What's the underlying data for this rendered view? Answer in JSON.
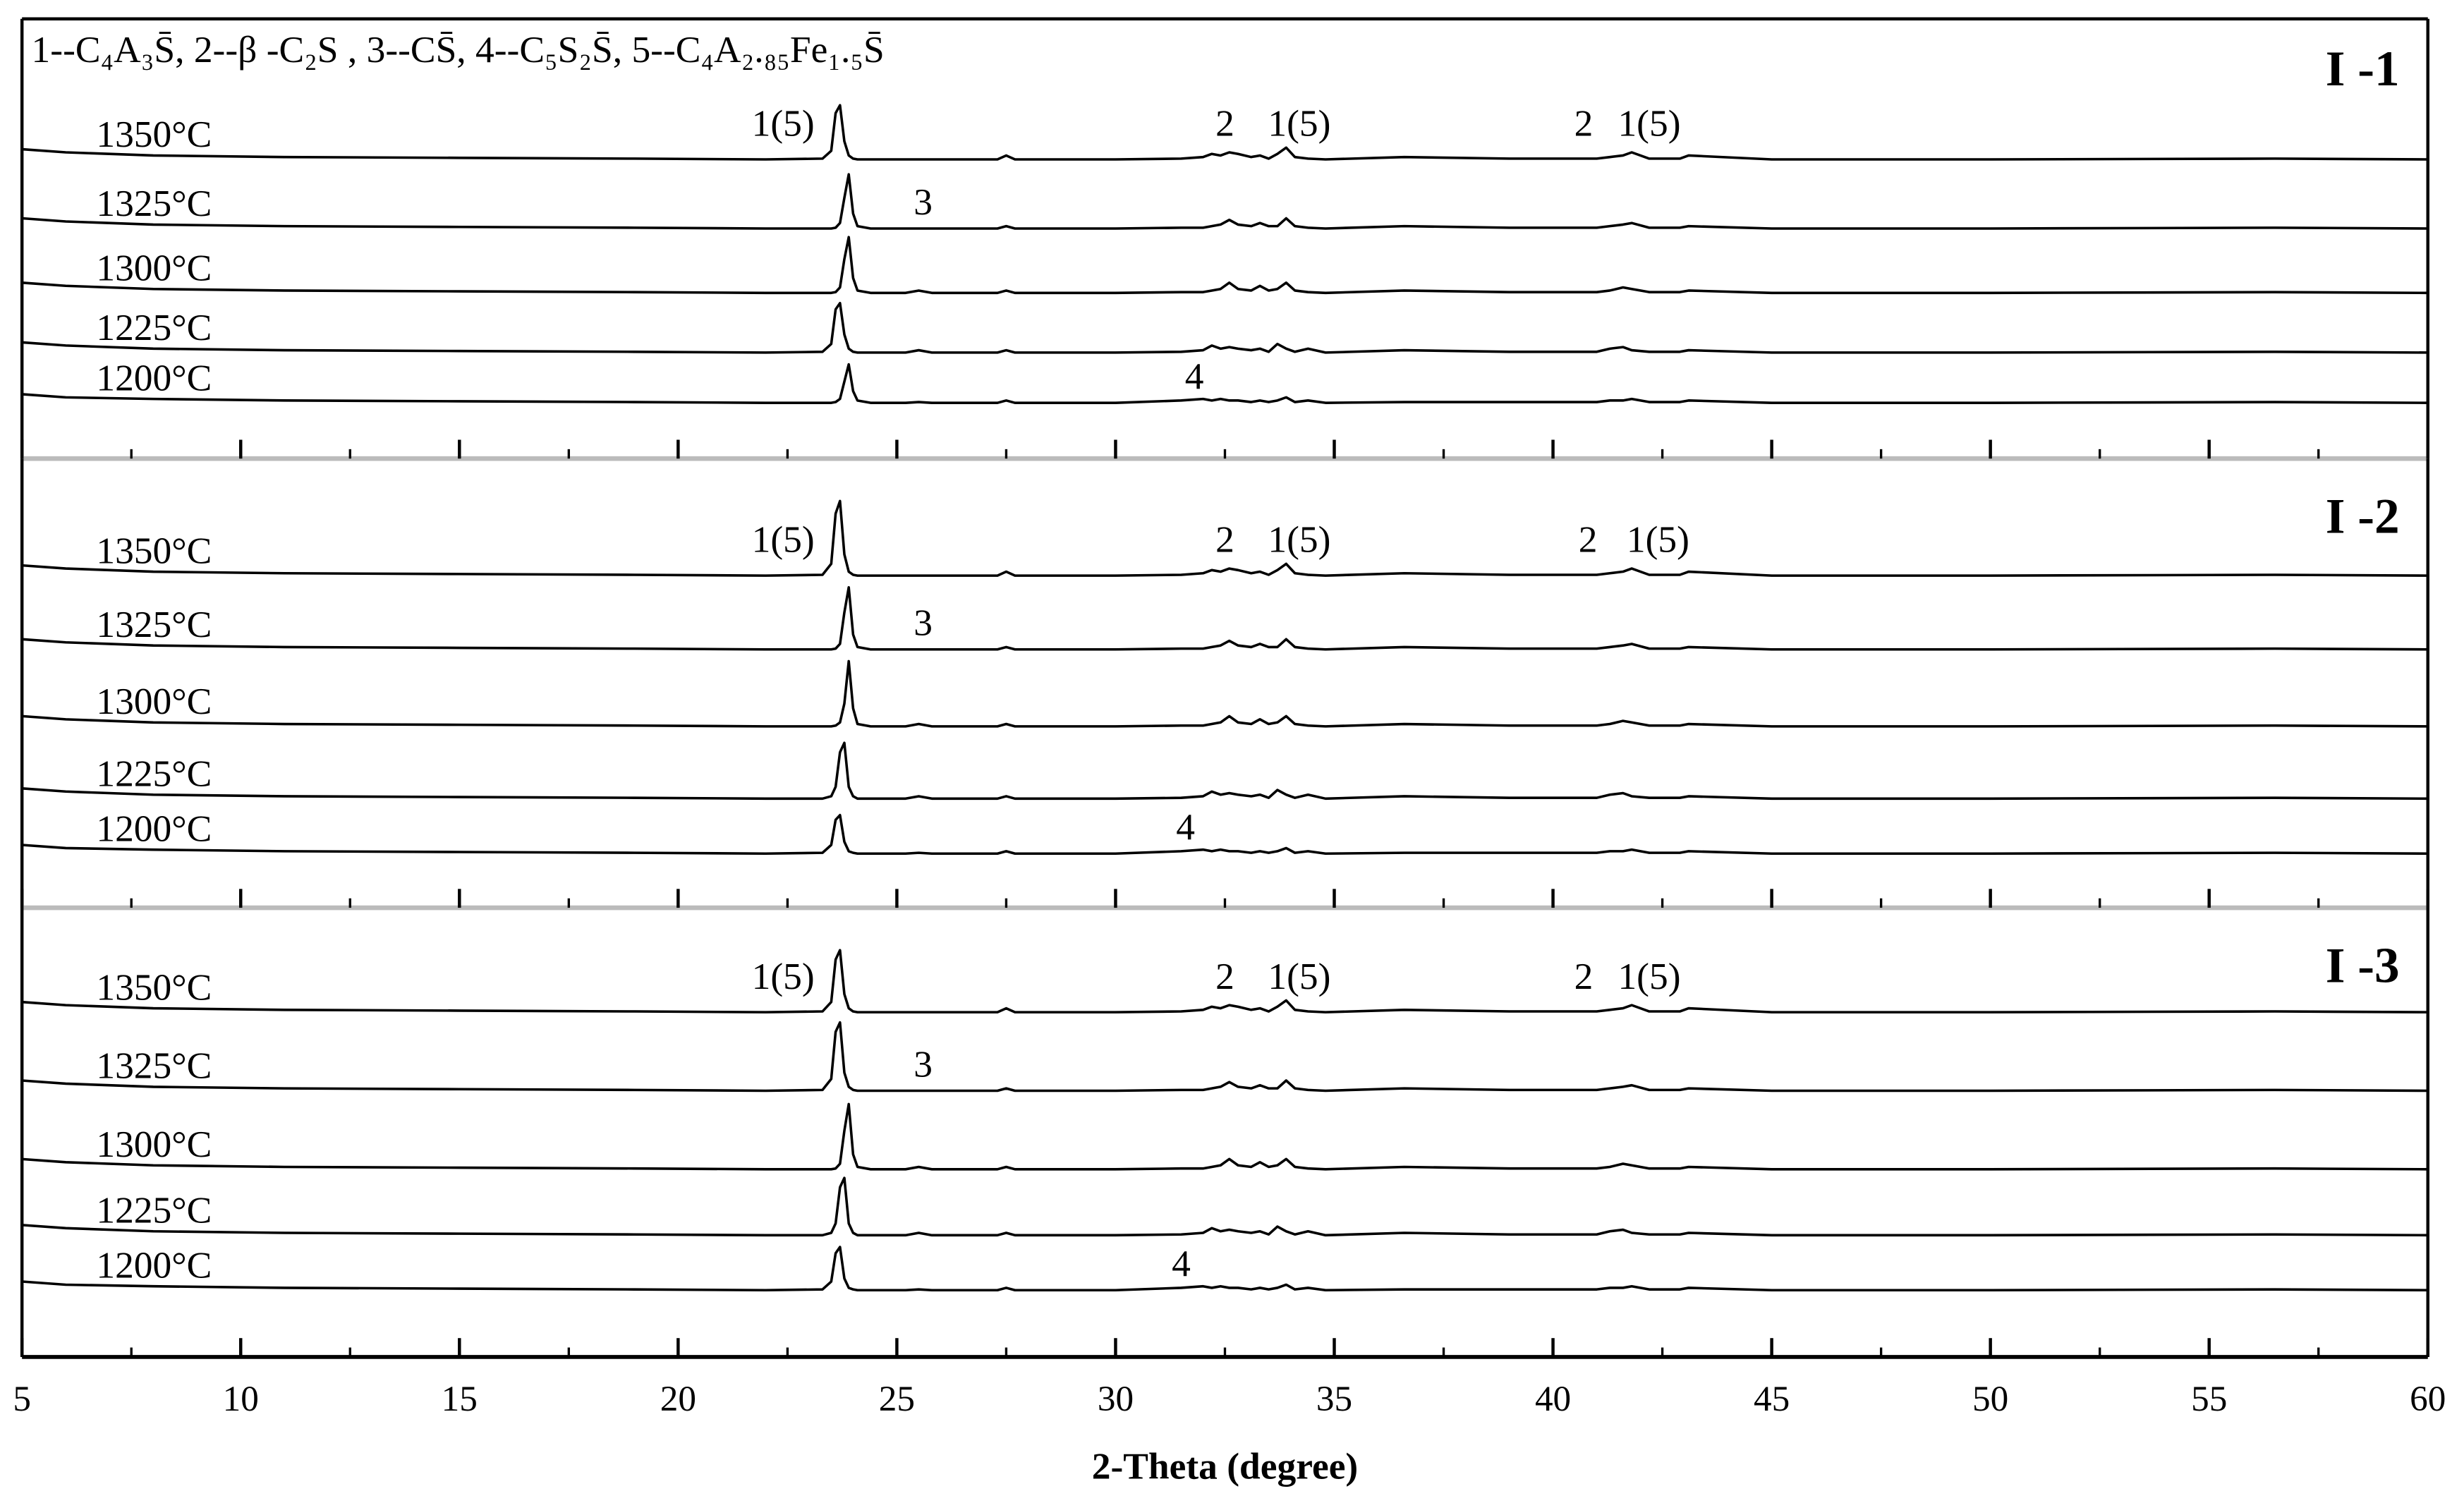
{
  "chart_data": [
    {
      "type": "line",
      "title": "I -1",
      "subtitle": "1--C₄A₃S̄, 2--β -C₂S , 3--CS̄, 4--C₅S₂S̄, 5--C₄A₂.₈₅Fe₁.₅S̄",
      "color": "#000000",
      "xlim": [
        5,
        60
      ],
      "xticks": [
        5,
        10,
        15,
        20,
        25,
        30,
        35,
        40,
        45,
        50,
        55,
        60
      ],
      "xticks_minor": [
        7.5,
        12.5,
        17.5,
        22.5,
        27.5,
        32.5,
        37.5,
        42.5,
        47.5,
        52.5,
        57.5
      ],
      "x": [
        5,
        6,
        8,
        11,
        15,
        19,
        22,
        23.3,
        23.5,
        23.6,
        23.7,
        23.8,
        23.9,
        24.0,
        24.1,
        24.4,
        25.2,
        25.5,
        25.8,
        27.3,
        27.5,
        27.7,
        30,
        31.5,
        32.0,
        32.2,
        32.4,
        32.6,
        32.8,
        33.1,
        33.3,
        33.5,
        33.7,
        33.9,
        34.1,
        34.4,
        34.8,
        36.6,
        39,
        41.0,
        41.3,
        41.6,
        41.8,
        42.2,
        42.9,
        43.1,
        45,
        50,
        56.5,
        60
      ],
      "series": [
        {
          "name": "1350°C",
          "annotations": [
            {
              "text": "1(5)",
              "x": 22.4
            },
            {
              "text": "2",
              "x": 32.5
            },
            {
              "text": "1(5)",
              "x": 34.2
            },
            {
              "text": "2",
              "x": 40.7
            },
            {
              "text": "1(5)",
              "x": 42.2
            }
          ],
          "values": [
            7,
            5,
            3,
            2,
            1.5,
            1,
            0.5,
            1,
            6,
            30,
            35,
            12,
            3,
            1,
            0.5,
            0.5,
            0.5,
            0.5,
            0.5,
            0.5,
            3,
            0.5,
            0.5,
            1,
            2,
            4,
            3,
            5,
            4,
            2,
            3,
            1,
            4,
            8,
            2,
            1,
            0.5,
            2,
            1,
            1,
            2,
            3,
            5,
            1,
            1,
            3,
            0.5,
            0.5,
            1,
            0.5
          ]
        },
        {
          "name": "1325°C",
          "annotations": [
            {
              "text": "3",
              "x": 25.6
            }
          ],
          "values": [
            7,
            5,
            3,
            2,
            1.5,
            1,
            0.5,
            0.5,
            0.5,
            1,
            4,
            20,
            35,
            10,
            2,
            0.5,
            0.5,
            0.5,
            0.5,
            0.5,
            2,
            0.5,
            0.5,
            1,
            1,
            2,
            3,
            6,
            3,
            2,
            4,
            2,
            2,
            7,
            2,
            1,
            0.5,
            2,
            1,
            1,
            2,
            3,
            4,
            1,
            1,
            2,
            0.5,
            0.5,
            1,
            0.5
          ]
        },
        {
          "name": "1300°C",
          "values": [
            7,
            5,
            3,
            2,
            1.5,
            1,
            0.5,
            0.5,
            0.5,
            1,
            4,
            22,
            36,
            10,
            2,
            0.5,
            0.5,
            2,
            0.5,
            0.5,
            2,
            0.5,
            0.5,
            1,
            1,
            2,
            3,
            7,
            3,
            2,
            5,
            2,
            3,
            7,
            2,
            1,
            0.5,
            2,
            1,
            1,
            2,
            4,
            3,
            1,
            1,
            2,
            0.5,
            0.5,
            1,
            0.5
          ]
        },
        {
          "name": "1225°C",
          "values": [
            7,
            5,
            3,
            2,
            1.5,
            1,
            0.5,
            1,
            6,
            28,
            32,
            12,
            3,
            1,
            0.5,
            0.5,
            0.5,
            2,
            0.5,
            0.5,
            2,
            0.5,
            0.5,
            1,
            2,
            5,
            3,
            4,
            3,
            2,
            3,
            1,
            6,
            3,
            1,
            3,
            0.5,
            2,
            1,
            1,
            3,
            4,
            2,
            1,
            1,
            2,
            0.5,
            0.5,
            1,
            0.5
          ]
        },
        {
          "name": "1200°C",
          "annotations": [
            {
              "text": "4",
              "x": 31.8
            }
          ],
          "values": [
            6,
            4,
            3,
            2,
            1.5,
            1,
            0.5,
            0.5,
            0.5,
            1,
            3,
            14,
            25,
            8,
            2,
            0.5,
            0.5,
            1,
            0.5,
            0.5,
            2,
            0.5,
            0.5,
            2,
            3,
            2,
            3,
            2,
            2,
            1,
            2,
            1,
            2,
            4,
            1,
            2,
            0.5,
            1,
            1,
            1,
            2,
            2,
            3,
            1,
            1,
            2,
            0.5,
            0.5,
            1,
            0.5
          ]
        }
      ]
    },
    {
      "type": "line",
      "title": "I -2",
      "color": "#000000",
      "xlim": [
        5,
        60
      ],
      "xticks": [
        5,
        10,
        15,
        20,
        25,
        30,
        35,
        40,
        45,
        50,
        55,
        60
      ],
      "xticks_minor": [
        7.5,
        12.5,
        17.5,
        22.5,
        27.5,
        32.5,
        37.5,
        42.5,
        47.5,
        52.5,
        57.5
      ],
      "x": [
        5,
        6,
        8,
        11,
        15,
        19,
        22,
        23.3,
        23.5,
        23.6,
        23.7,
        23.8,
        23.9,
        24.0,
        24.1,
        24.4,
        25.2,
        25.5,
        25.8,
        27.3,
        27.5,
        27.7,
        30,
        31.5,
        32.0,
        32.2,
        32.4,
        32.6,
        32.8,
        33.1,
        33.3,
        33.5,
        33.7,
        33.9,
        34.1,
        34.4,
        34.8,
        36.6,
        39,
        41.0,
        41.3,
        41.6,
        41.8,
        42.2,
        42.9,
        43.1,
        45,
        50,
        56.5,
        60
      ],
      "series": [
        {
          "name": "1350°C",
          "annotations": [
            {
              "text": "1(5)",
              "x": 22.4
            },
            {
              "text": "2",
              "x": 32.5
            },
            {
              "text": "1(5)",
              "x": 34.2
            },
            {
              "text": "2",
              "x": 40.8
            },
            {
              "text": "1(5)",
              "x": 42.4
            }
          ],
          "values": [
            7,
            5,
            3,
            2,
            1.5,
            1,
            0.5,
            1,
            8,
            40,
            48,
            14,
            3,
            1,
            0.5,
            0.5,
            0.5,
            0.5,
            0.5,
            0.5,
            3,
            0.5,
            0.5,
            1,
            2,
            4,
            3,
            5,
            4,
            2,
            3,
            1,
            4,
            8,
            2,
            1,
            0.5,
            2,
            1,
            1,
            2,
            3,
            5,
            1,
            1,
            3,
            0.5,
            0.5,
            1,
            0.5
          ]
        },
        {
          "name": "1325°C",
          "annotations": [
            {
              "text": "3",
              "x": 25.6
            }
          ],
          "values": [
            7,
            5,
            3,
            2,
            1.5,
            1,
            0.5,
            0.5,
            0.5,
            1,
            4,
            24,
            40,
            10,
            2,
            0.5,
            0.5,
            0.5,
            0.5,
            0.5,
            2,
            0.5,
            0.5,
            1,
            1,
            2,
            3,
            6,
            3,
            2,
            4,
            2,
            2,
            7,
            2,
            1,
            0.5,
            2,
            1,
            1,
            2,
            3,
            4,
            1,
            1,
            2,
            0.5,
            0.5,
            1,
            0.5
          ]
        },
        {
          "name": "1300°C",
          "values": [
            7,
            5,
            3,
            2,
            1.5,
            1,
            0.5,
            0.5,
            0.5,
            1,
            3,
            15,
            42,
            12,
            2,
            0.5,
            0.5,
            2,
            0.5,
            0.5,
            2,
            0.5,
            0.5,
            1,
            1,
            2,
            3,
            7,
            3,
            2,
            5,
            2,
            3,
            7,
            2,
            1,
            0.5,
            2,
            1,
            1,
            2,
            4,
            3,
            1,
            1,
            2,
            0.5,
            0.5,
            1,
            0.5
          ]
        },
        {
          "name": "1225°C",
          "values": [
            7,
            5,
            3,
            2,
            1.5,
            1,
            0.5,
            0.5,
            2,
            8,
            30,
            36,
            8,
            2,
            0.5,
            0.5,
            0.5,
            2,
            0.5,
            0.5,
            2,
            0.5,
            0.5,
            1,
            2,
            5,
            3,
            4,
            3,
            2,
            3,
            1,
            6,
            3,
            1,
            3,
            0.5,
            2,
            1,
            1,
            3,
            4,
            2,
            1,
            1,
            2,
            0.5,
            0.5,
            1,
            0.5
          ]
        },
        {
          "name": "1200°C",
          "annotations": [
            {
              "text": "4",
              "x": 31.6
            }
          ],
          "values": [
            6,
            4,
            3,
            2,
            1.5,
            1,
            0.5,
            1,
            6,
            22,
            25,
            8,
            2,
            1,
            0.5,
            0.5,
            0.5,
            1,
            0.5,
            0.5,
            2,
            0.5,
            0.5,
            2,
            3,
            2,
            3,
            2,
            2,
            1,
            2,
            1,
            2,
            4,
            1,
            2,
            0.5,
            1,
            1,
            1,
            2,
            2,
            3,
            1,
            1,
            2,
            0.5,
            0.5,
            1,
            0.5
          ]
        }
      ]
    },
    {
      "type": "line",
      "title": "I -3",
      "color": "#000000",
      "xlabel": "2-Theta (degree)",
      "xlim": [
        5,
        60
      ],
      "xticks": [
        5,
        10,
        15,
        20,
        25,
        30,
        35,
        40,
        45,
        50,
        55,
        60
      ],
      "xticks_minor": [
        7.5,
        12.5,
        17.5,
        22.5,
        27.5,
        32.5,
        37.5,
        42.5,
        47.5,
        52.5,
        57.5
      ],
      "x": [
        5,
        6,
        8,
        11,
        15,
        19,
        22,
        23.3,
        23.5,
        23.6,
        23.7,
        23.8,
        23.9,
        24.0,
        24.1,
        24.4,
        25.2,
        25.5,
        25.8,
        27.3,
        27.5,
        27.7,
        30,
        31.5,
        32.0,
        32.2,
        32.4,
        32.6,
        32.8,
        33.1,
        33.3,
        33.5,
        33.7,
        33.9,
        34.1,
        34.4,
        34.8,
        36.6,
        39,
        41.0,
        41.3,
        41.6,
        41.8,
        42.2,
        42.9,
        43.1,
        45,
        50,
        56.5,
        60
      ],
      "series": [
        {
          "name": "1350°C",
          "annotations": [
            {
              "text": "1(5)",
              "x": 22.4
            },
            {
              "text": "2",
              "x": 32.5
            },
            {
              "text": "1(5)",
              "x": 34.2
            },
            {
              "text": "2",
              "x": 40.7
            },
            {
              "text": "1(5)",
              "x": 42.2
            }
          ],
          "values": [
            7,
            5,
            3,
            2,
            1.5,
            1,
            0.5,
            1,
            7,
            34,
            40,
            12,
            3,
            1,
            0.5,
            0.5,
            0.5,
            0.5,
            0.5,
            0.5,
            3,
            0.5,
            0.5,
            1,
            2,
            4,
            3,
            5,
            4,
            2,
            3,
            1,
            4,
            8,
            2,
            1,
            0.5,
            2,
            1,
            1,
            2,
            3,
            5,
            1,
            1,
            3,
            0.5,
            0.5,
            1,
            0.5
          ]
        },
        {
          "name": "1325°C",
          "annotations": [
            {
              "text": "3",
              "x": 25.6
            }
          ],
          "values": [
            7,
            5,
            3,
            2,
            1.5,
            1,
            0.5,
            1,
            8,
            38,
            44,
            12,
            3,
            1,
            0.5,
            0.5,
            0.5,
            0.5,
            0.5,
            0.5,
            2,
            0.5,
            0.5,
            1,
            1,
            2,
            3,
            6,
            3,
            2,
            4,
            2,
            2,
            7,
            2,
            1,
            0.5,
            2,
            1,
            1,
            2,
            3,
            4,
            1,
            1,
            2,
            0.5,
            0.5,
            1,
            0.5
          ]
        },
        {
          "name": "1300°C",
          "values": [
            7,
            5,
            3,
            2,
            1.5,
            1,
            0.5,
            0.5,
            0.5,
            1,
            4,
            25,
            42,
            10,
            2,
            0.5,
            0.5,
            2,
            0.5,
            0.5,
            2,
            0.5,
            0.5,
            1,
            1,
            2,
            3,
            7,
            3,
            2,
            5,
            2,
            3,
            7,
            2,
            1,
            0.5,
            2,
            1,
            1,
            2,
            4,
            3,
            1,
            1,
            2,
            0.5,
            0.5,
            1,
            0.5
          ]
        },
        {
          "name": "1225°C",
          "values": [
            7,
            5,
            3,
            2,
            1.5,
            1,
            0.5,
            0.5,
            2,
            8,
            31,
            37,
            8,
            2,
            0.5,
            0.5,
            0.5,
            2,
            0.5,
            0.5,
            2,
            0.5,
            0.5,
            1,
            2,
            5,
            3,
            4,
            3,
            2,
            3,
            1,
            6,
            3,
            1,
            3,
            0.5,
            2,
            1,
            1,
            3,
            4,
            2,
            1,
            1,
            2,
            0.5,
            0.5,
            1,
            0.5
          ]
        },
        {
          "name": "1200°C",
          "annotations": [
            {
              "text": "4",
              "x": 31.5
            }
          ],
          "values": [
            6,
            4,
            3,
            2,
            1.5,
            1,
            0.5,
            1,
            6,
            24,
            28,
            8,
            2,
            1,
            0.5,
            0.5,
            0.5,
            1,
            0.5,
            0.5,
            2,
            0.5,
            0.5,
            2,
            3,
            2,
            3,
            2,
            2,
            1,
            2,
            1,
            2,
            4,
            1,
            2,
            0.5,
            1,
            1,
            1,
            2,
            2,
            3,
            1,
            1,
            2,
            0.5,
            0.5,
            1,
            0.5
          ]
        }
      ]
    }
  ]
}
